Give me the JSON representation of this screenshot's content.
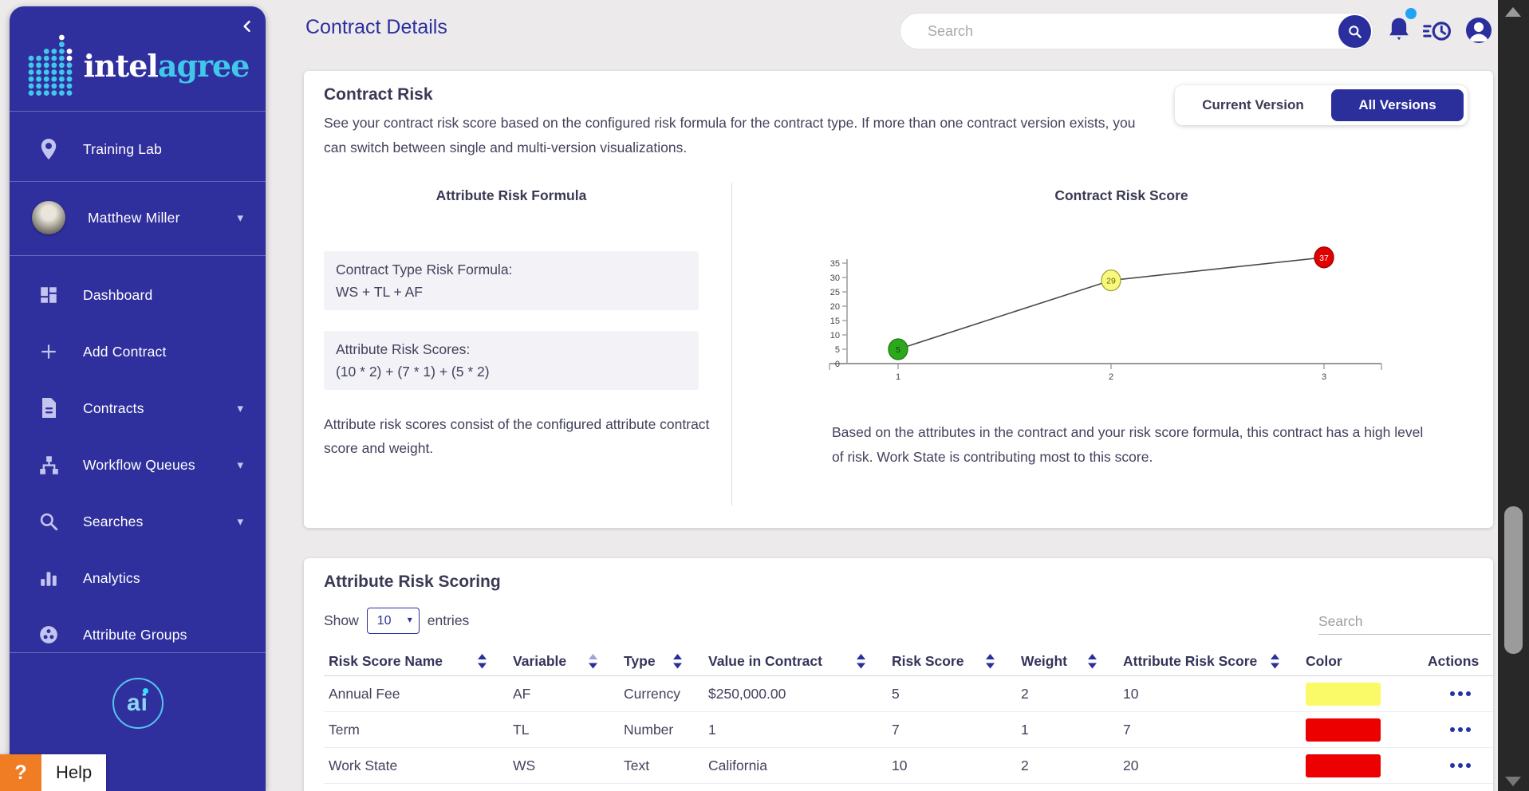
{
  "sidebar": {
    "brand_intel": "intel",
    "brand_agree": "agree",
    "collapse_icon": "chevron-left-icon",
    "items": [
      {
        "label": "Training Lab",
        "icon": "location-pin-icon",
        "caret": false
      },
      {
        "label": "Matthew Miller",
        "icon": "user-photo-avatar",
        "caret": true
      },
      {
        "label": "Dashboard",
        "icon": "dashboard-icon",
        "caret": false
      },
      {
        "label": "Add Contract",
        "icon": "plus-icon",
        "caret": false
      },
      {
        "label": "Contracts",
        "icon": "document-icon",
        "caret": true
      },
      {
        "label": "Workflow Queues",
        "icon": "workflow-icon",
        "caret": true
      },
      {
        "label": "Searches",
        "icon": "search-icon",
        "caret": true
      },
      {
        "label": "Analytics",
        "icon": "analytics-icon",
        "caret": false
      },
      {
        "label": "Attribute Groups",
        "icon": "attribute-groups-icon",
        "caret": false
      }
    ],
    "footer_logo_text": "ai"
  },
  "help": {
    "icon_char": "?",
    "label": "Help"
  },
  "header": {
    "page_title": "Contract Details",
    "search_placeholder": "Search",
    "icons": [
      "search-icon",
      "notifications-bell-icon",
      "history-icon",
      "account-icon"
    ],
    "notification_dot": true
  },
  "risk_card": {
    "title": "Contract Risk",
    "description": "See your contract risk score based on the configured risk formula for the contract type. If more than one contract version exists, you can switch between single and multi-version visualizations.",
    "toggle": {
      "current": "Current Version",
      "all": "All Versions"
    },
    "formula": {
      "title": "Attribute Risk Formula",
      "box1_title": "Contract Type Risk Formula:",
      "box1_value": "WS + TL + AF",
      "box2_title": "Attribute Risk Scores:",
      "box2_value": "(10 * 2) + (7 * 1) + (5 * 2)",
      "note": "Attribute risk scores consist of the configured attribute contract score and weight."
    },
    "score": {
      "title": "Contract Risk Score",
      "caption": "Based on the attributes in the contract and your risk score formula, this contract has a high level of risk. Work State is contributing most to this score."
    }
  },
  "chart_data": {
    "type": "line",
    "title": "Contract Risk Score",
    "x": [
      1,
      2,
      3
    ],
    "values": [
      5,
      29,
      37
    ],
    "point_colors": [
      "#2CA81C",
      "#F8F87C",
      "#E00000"
    ],
    "point_stroke_colors": [
      "#1D7A0D",
      "#A4A43A",
      "#9E0000"
    ],
    "point_label_colors": [
      "#123B08",
      "#6B6B00",
      "#FFFFFF"
    ],
    "yticks": [
      0,
      5,
      10,
      15,
      20,
      25,
      30,
      35
    ],
    "ylim": [
      0,
      38
    ],
    "xlabel": "",
    "ylabel": "",
    "grid": false,
    "legend": "none",
    "line_color": "#4A4A4A"
  },
  "table_card": {
    "title": "Attribute Risk Scoring",
    "show_label": "Show",
    "page_size": "10",
    "entries_label": "entries",
    "search_placeholder": "Search",
    "columns": [
      {
        "label": "Risk Score Name",
        "sortable": true
      },
      {
        "label": "Variable",
        "sortable": true,
        "sort_muted": "up"
      },
      {
        "label": "Type",
        "sortable": true
      },
      {
        "label": "Value in Contract",
        "sortable": true
      },
      {
        "label": "Risk Score",
        "sortable": true
      },
      {
        "label": "Weight",
        "sortable": true
      },
      {
        "label": "Attribute Risk Score",
        "sortable": true
      },
      {
        "label": "Color",
        "sortable": false
      },
      {
        "label": "Actions",
        "sortable": false
      }
    ],
    "rows": [
      {
        "cells": [
          "Annual Fee",
          "AF",
          "Currency",
          "$250,000.00",
          "5",
          "2",
          "10"
        ],
        "color": "#FAFA69",
        "actions": "row-actions-menu"
      },
      {
        "cells": [
          "Term",
          "TL",
          "Number",
          "1",
          "7",
          "1",
          "7"
        ],
        "color": "#ED0000",
        "actions": "row-actions-menu"
      },
      {
        "cells": [
          "Work State",
          "WS",
          "Text",
          "California",
          "10",
          "2",
          "20"
        ],
        "color": "#ED0000",
        "actions": "row-actions-menu"
      }
    ]
  },
  "colors": {
    "accent": "#2B2F9E",
    "sidebar": "#2F309E",
    "brand_cyan": "#41C7E9",
    "notification_blue": "#1FA4F4",
    "help_orange": "#F07D23",
    "swatch_yellow": "#FAFA69",
    "swatch_red": "#ED0000",
    "background": "#ECEAEB"
  }
}
